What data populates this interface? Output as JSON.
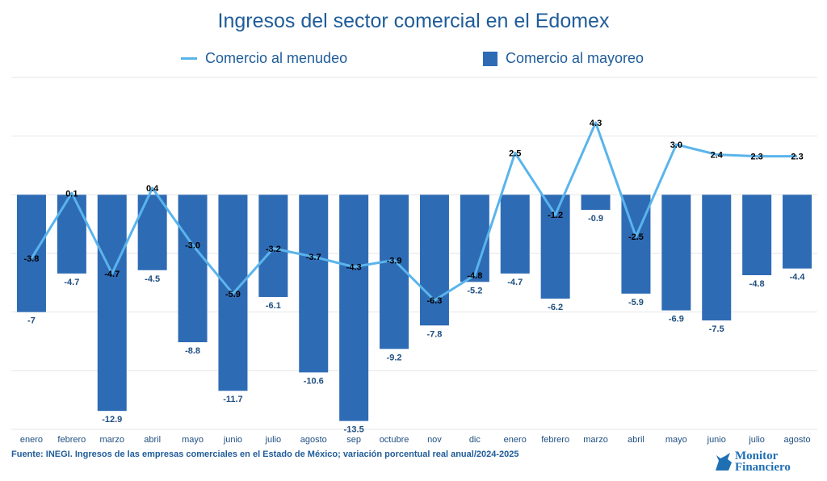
{
  "chart_data": {
    "type": "bar+line",
    "title": "Ingresos del sector comercial en el Edomex",
    "categories": [
      "enero",
      "febrero",
      "marzo",
      "abril",
      "mayo",
      "junio",
      "julio",
      "agosto",
      "sep",
      "octubre",
      "nov",
      "dic",
      "enero",
      "febrero",
      "marzo",
      "abril",
      "mayo",
      "junio",
      "julio",
      "agosto"
    ],
    "series": [
      {
        "name": "Comercio al menudeo",
        "kind": "line",
        "color": "#5ab4ec",
        "values": [
          -3.8,
          0.1,
          -4.7,
          0.4,
          -3.0,
          -5.9,
          -3.2,
          -3.7,
          -4.3,
          -3.9,
          -6.3,
          -4.8,
          2.5,
          -1.2,
          4.3,
          -2.5,
          3.0,
          2.4,
          2.3,
          2.3
        ],
        "labels": [
          "-3.8",
          "0.1",
          "-4.7",
          "0.4",
          "-3.0",
          "-5.9",
          "-3.2",
          "-3.7",
          "-4.3",
          "-3.9",
          "-6.3",
          "-4.8",
          "2.5",
          "-1.2",
          "4.3",
          "-2.5",
          "3.0",
          "2.4",
          "2.3",
          "2.3"
        ]
      },
      {
        "name": "Comercio al mayoreo",
        "kind": "bar",
        "color": "#2e6bb5",
        "values": [
          -7,
          -4.7,
          -12.9,
          -4.5,
          -8.8,
          -11.7,
          -6.1,
          -10.6,
          -13.5,
          -9.2,
          -7.8,
          -5.2,
          -4.7,
          -6.2,
          -0.9,
          -5.9,
          -6.9,
          -7.5,
          -4.8,
          -4.4
        ],
        "labels": [
          "-7",
          "-4.7",
          "-12.9",
          "-4.5",
          "-8.8",
          "-11.7",
          "-6.1",
          "-10.6",
          "-13.5",
          "-9.2",
          "-7.8",
          "-5.2",
          "-4.7",
          "-6.2",
          "-0.9",
          "-5.9",
          "-6.9",
          "-7.5",
          "-4.8",
          "-4.4"
        ]
      }
    ],
    "ylim": [
      -14,
      7
    ],
    "grid_step": 3.5,
    "grid": true,
    "y_tick_labels": false,
    "legend_position": "top"
  },
  "source": "Fuente: INEGI. Ingresos de las empresas comerciales en el Estado de México; variación porcentual real anual/2024-2025",
  "logo_text": "Monitor Financiero"
}
